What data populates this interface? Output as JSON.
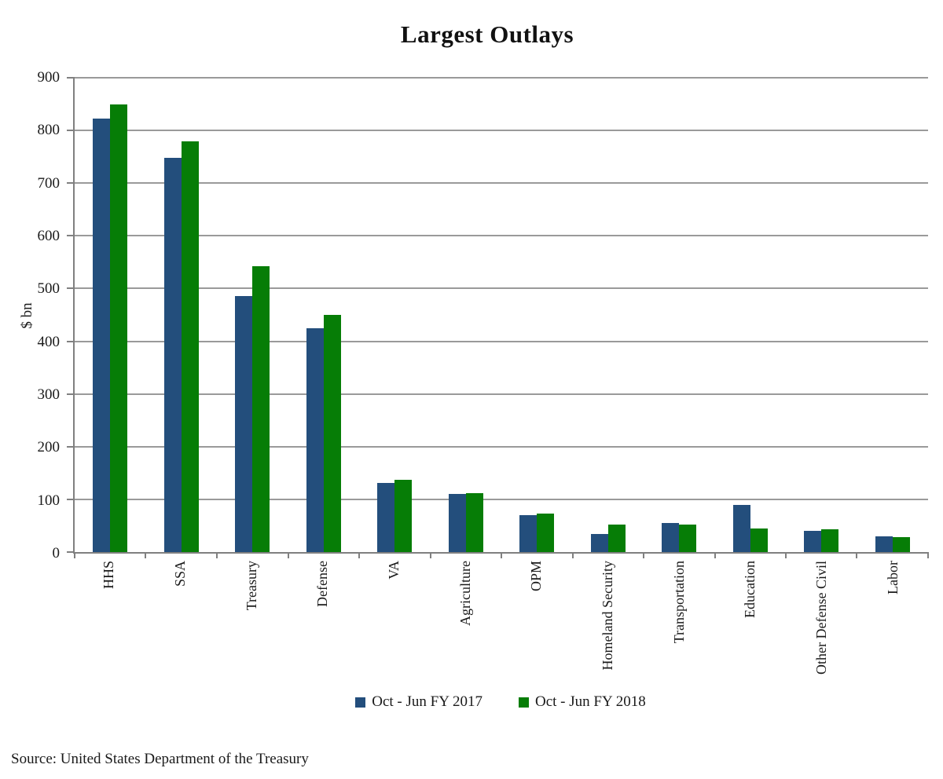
{
  "title": "Largest Outlays",
  "source": "Source: United States Department of the Treasury",
  "legend": [
    {
      "label": "Oct - Jun FY 2017",
      "color": "#234E7C"
    },
    {
      "label": "Oct - Jun FY 2018",
      "color": "#067D06"
    }
  ],
  "chart_data": {
    "type": "bar",
    "title": "Largest Outlays",
    "xlabel": "",
    "ylabel": "$ bn",
    "ylim": [
      0,
      900
    ],
    "yticks": [
      0,
      100,
      200,
      300,
      400,
      500,
      600,
      700,
      800,
      900
    ],
    "grid": true,
    "legend_position": "bottom",
    "categories": [
      "HHS",
      "SSA",
      "Treasury",
      "Defense",
      "VA",
      "Agriculture",
      "OPM",
      "Homeland Security",
      "Transportation",
      "Education",
      "Other Defense Civil",
      "Labor"
    ],
    "series": [
      {
        "name": "Oct - Jun FY 2017",
        "color": "#234E7C",
        "values": [
          822,
          748,
          486,
          424,
          131,
          110,
          70,
          35,
          55,
          90,
          41,
          30
        ]
      },
      {
        "name": "Oct - Jun FY 2018",
        "color": "#067D06",
        "values": [
          850,
          780,
          543,
          450,
          137,
          112,
          73,
          52,
          52,
          45,
          43,
          28
        ]
      }
    ]
  }
}
